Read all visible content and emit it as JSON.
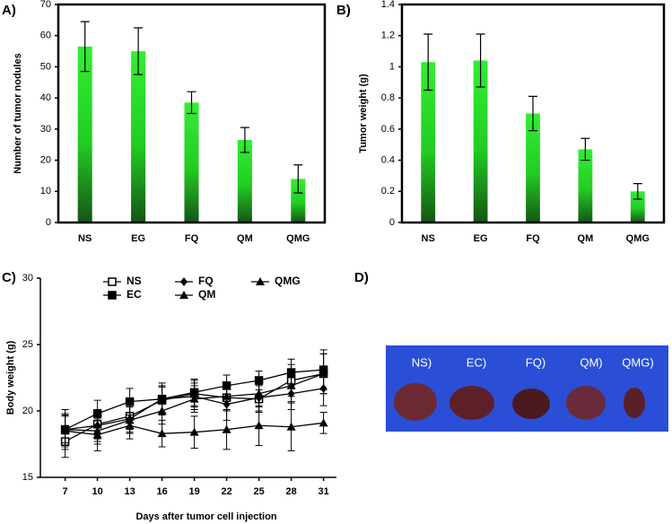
{
  "chart_data": [
    {
      "type": "bar",
      "panel_label": "A)",
      "ylabel": "Number of tumor nodules",
      "categories": [
        "NS",
        "EG",
        "FQ",
        "QM",
        "QMG"
      ],
      "values": [
        56.5,
        55,
        38.5,
        26.5,
        14
      ],
      "errors": [
        8,
        7.5,
        3.5,
        4,
        4.5
      ],
      "color": "#33ee33",
      "ylim": [
        0,
        70
      ],
      "yticks": [
        0,
        10,
        20,
        30,
        40,
        50,
        60,
        70
      ]
    },
    {
      "type": "bar",
      "panel_label": "B)",
      "ylabel": "Tumor weight (g)",
      "categories": [
        "NS",
        "EG",
        "FQ",
        "QM",
        "QMG"
      ],
      "values": [
        1.03,
        1.04,
        0.7,
        0.47,
        0.2
      ],
      "errors": [
        0.18,
        0.17,
        0.11,
        0.07,
        0.05
      ],
      "color": "#33ee33",
      "ylim": [
        0,
        1.4
      ],
      "yticks": [
        0,
        0.2,
        0.4,
        0.6,
        0.8,
        1,
        1.2,
        1.4
      ]
    },
    {
      "type": "line",
      "panel_label": "C)",
      "ylabel": "Body weight (g)",
      "xlabel": "Days after tumor cell injection",
      "x": [
        7,
        10,
        13,
        16,
        19,
        22,
        25,
        28,
        31
      ],
      "xlim": [
        4.7,
        32.2
      ],
      "xticks": [
        7,
        10,
        13,
        16,
        19,
        22,
        25,
        28,
        31
      ],
      "ylim": [
        15,
        30
      ],
      "yticks": [
        15,
        20,
        25,
        30
      ],
      "series": [
        {
          "name": "NS",
          "color": "#000000",
          "marker": "square-open",
          "values": [
            17.7,
            19.0,
            19.6,
            20.8,
            21.3,
            21.0,
            20.9,
            22.3,
            22.8
          ],
          "errors": [
            1.2,
            1.1,
            1.0,
            1.0,
            1.0,
            1.0,
            1.0,
            1.2,
            1.5
          ]
        },
        {
          "name": "EC",
          "color": "#000000",
          "marker": "square",
          "values": [
            18.6,
            19.8,
            20.7,
            20.9,
            21.4,
            21.9,
            22.3,
            22.9,
            23.1
          ],
          "errors": [
            1.5,
            1.0,
            1.0,
            1.2,
            1.0,
            0.8,
            0.7,
            1.0,
            1.5
          ]
        },
        {
          "name": "FQ",
          "color": "#000000",
          "marker": "diamond",
          "values": [
            18.6,
            18.9,
            19.4,
            20.9,
            21.1,
            20.5,
            21.0,
            21.3,
            21.7
          ],
          "errors": [
            1.2,
            1.2,
            1.0,
            1.0,
            1.0,
            1.2,
            1.0,
            1.2,
            1.3
          ]
        },
        {
          "name": "QM",
          "color": "#000000",
          "marker": "triangle",
          "values": [
            18.6,
            18.5,
            19.3,
            20.0,
            20.9,
            21.1,
            21.3,
            21.9,
            22.8
          ],
          "errors": [
            1.0,
            1.0,
            1.0,
            1.0,
            1.0,
            1.0,
            1.0,
            1.2,
            1.5
          ]
        },
        {
          "name": "QMG",
          "color": "#000000",
          "marker": "triangle",
          "values": [
            18.5,
            18.2,
            18.9,
            18.3,
            18.4,
            18.6,
            18.9,
            18.8,
            19.1
          ],
          "errors": [
            1.2,
            1.2,
            1.0,
            1.0,
            1.2,
            1.5,
            1.5,
            1.8,
            0.8
          ]
        }
      ]
    }
  ],
  "photo": {
    "panel_label": "D)",
    "labels": [
      "NS)",
      "EC)",
      "FQ)",
      "QM)",
      "QMG)"
    ]
  }
}
